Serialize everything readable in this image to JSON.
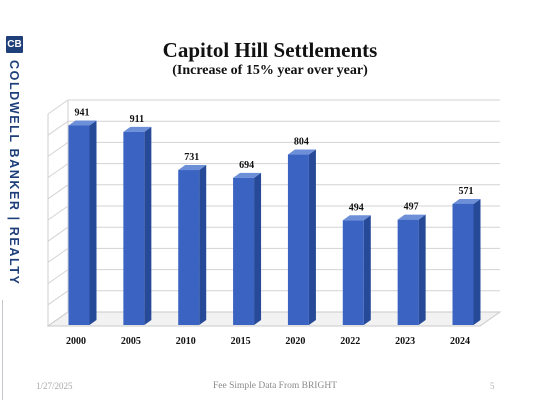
{
  "brand": {
    "logo_text": "CB",
    "name": "COLDWELL BANKER | REALTY"
  },
  "chart_data": {
    "type": "bar",
    "title": "Capitol Hill Settlements",
    "subtitle": "(Increase of 15% year over year)",
    "categories": [
      "2000",
      "2005",
      "2010",
      "2015",
      "2020",
      "2022",
      "2023",
      "2024"
    ],
    "values": [
      941,
      911,
      731,
      694,
      804,
      494,
      497,
      571
    ],
    "xlabel": "",
    "ylabel": "",
    "ylim": [
      0,
      1000
    ],
    "grid": true,
    "bar_color": "#3b64c2",
    "bar_side_color": "#264a98",
    "bar_top_color": "#6c8fd8"
  },
  "footer": {
    "date": "1/27/2025",
    "source": "Fee Simple Data From BRIGHT",
    "page": "5"
  }
}
